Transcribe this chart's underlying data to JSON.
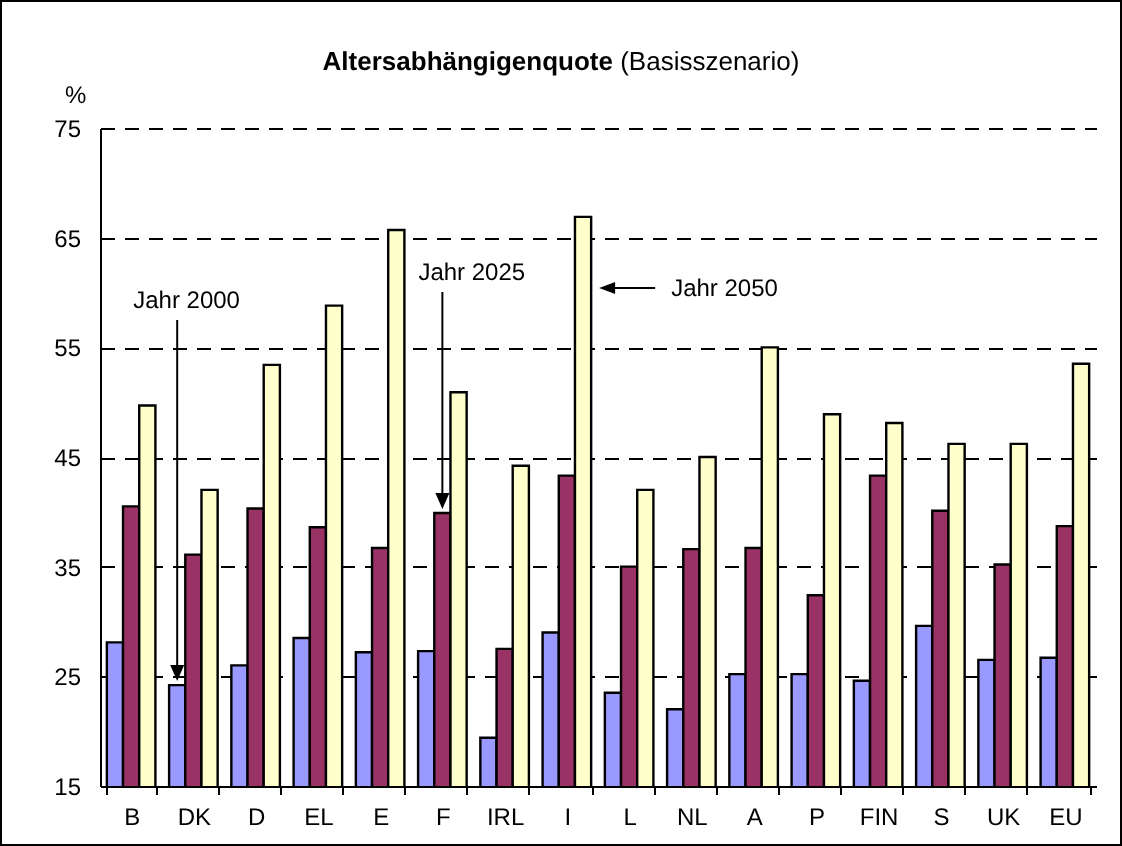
{
  "chart_data": {
    "type": "bar",
    "title": "Altersabhängigenquote",
    "subtitle": "(Basisszenario)",
    "ylabel": "%",
    "categories": [
      "B",
      "DK",
      "D",
      "EL",
      "E",
      "F",
      "IRL",
      "I",
      "L",
      "NL",
      "A",
      "P",
      "FIN",
      "S",
      "UK",
      "EU"
    ],
    "series": [
      {
        "color": "#9999ff",
        "values": [
          28.1,
          24.2,
          26.0,
          28.5,
          27.2,
          27.3,
          19.4,
          29.0,
          23.5,
          22.0,
          25.2,
          25.2,
          24.6,
          29.6,
          26.5,
          26.7
        ]
      },
      {
        "color": "#993366",
        "values": [
          40.5,
          36.1,
          40.3,
          38.6,
          36.7,
          39.9,
          27.5,
          43.3,
          35.0,
          36.6,
          36.7,
          32.4,
          43.3,
          40.1,
          35.2,
          38.7
        ]
      },
      {
        "color": "#ffffcc",
        "values": [
          49.7,
          42.0,
          53.4,
          58.8,
          65.7,
          50.9,
          44.2,
          66.9,
          42.0,
          45.0,
          55.0,
          48.9,
          48.1,
          46.2,
          46.2,
          53.5
        ]
      }
    ],
    "ylim": [
      15,
      75
    ],
    "yticks": [
      15,
      25,
      35,
      45,
      55,
      65,
      75
    ],
    "grid": "y",
    "annotations": [
      "Jahr 2000",
      "Jahr 2025",
      "Jahr 2050"
    ]
  }
}
